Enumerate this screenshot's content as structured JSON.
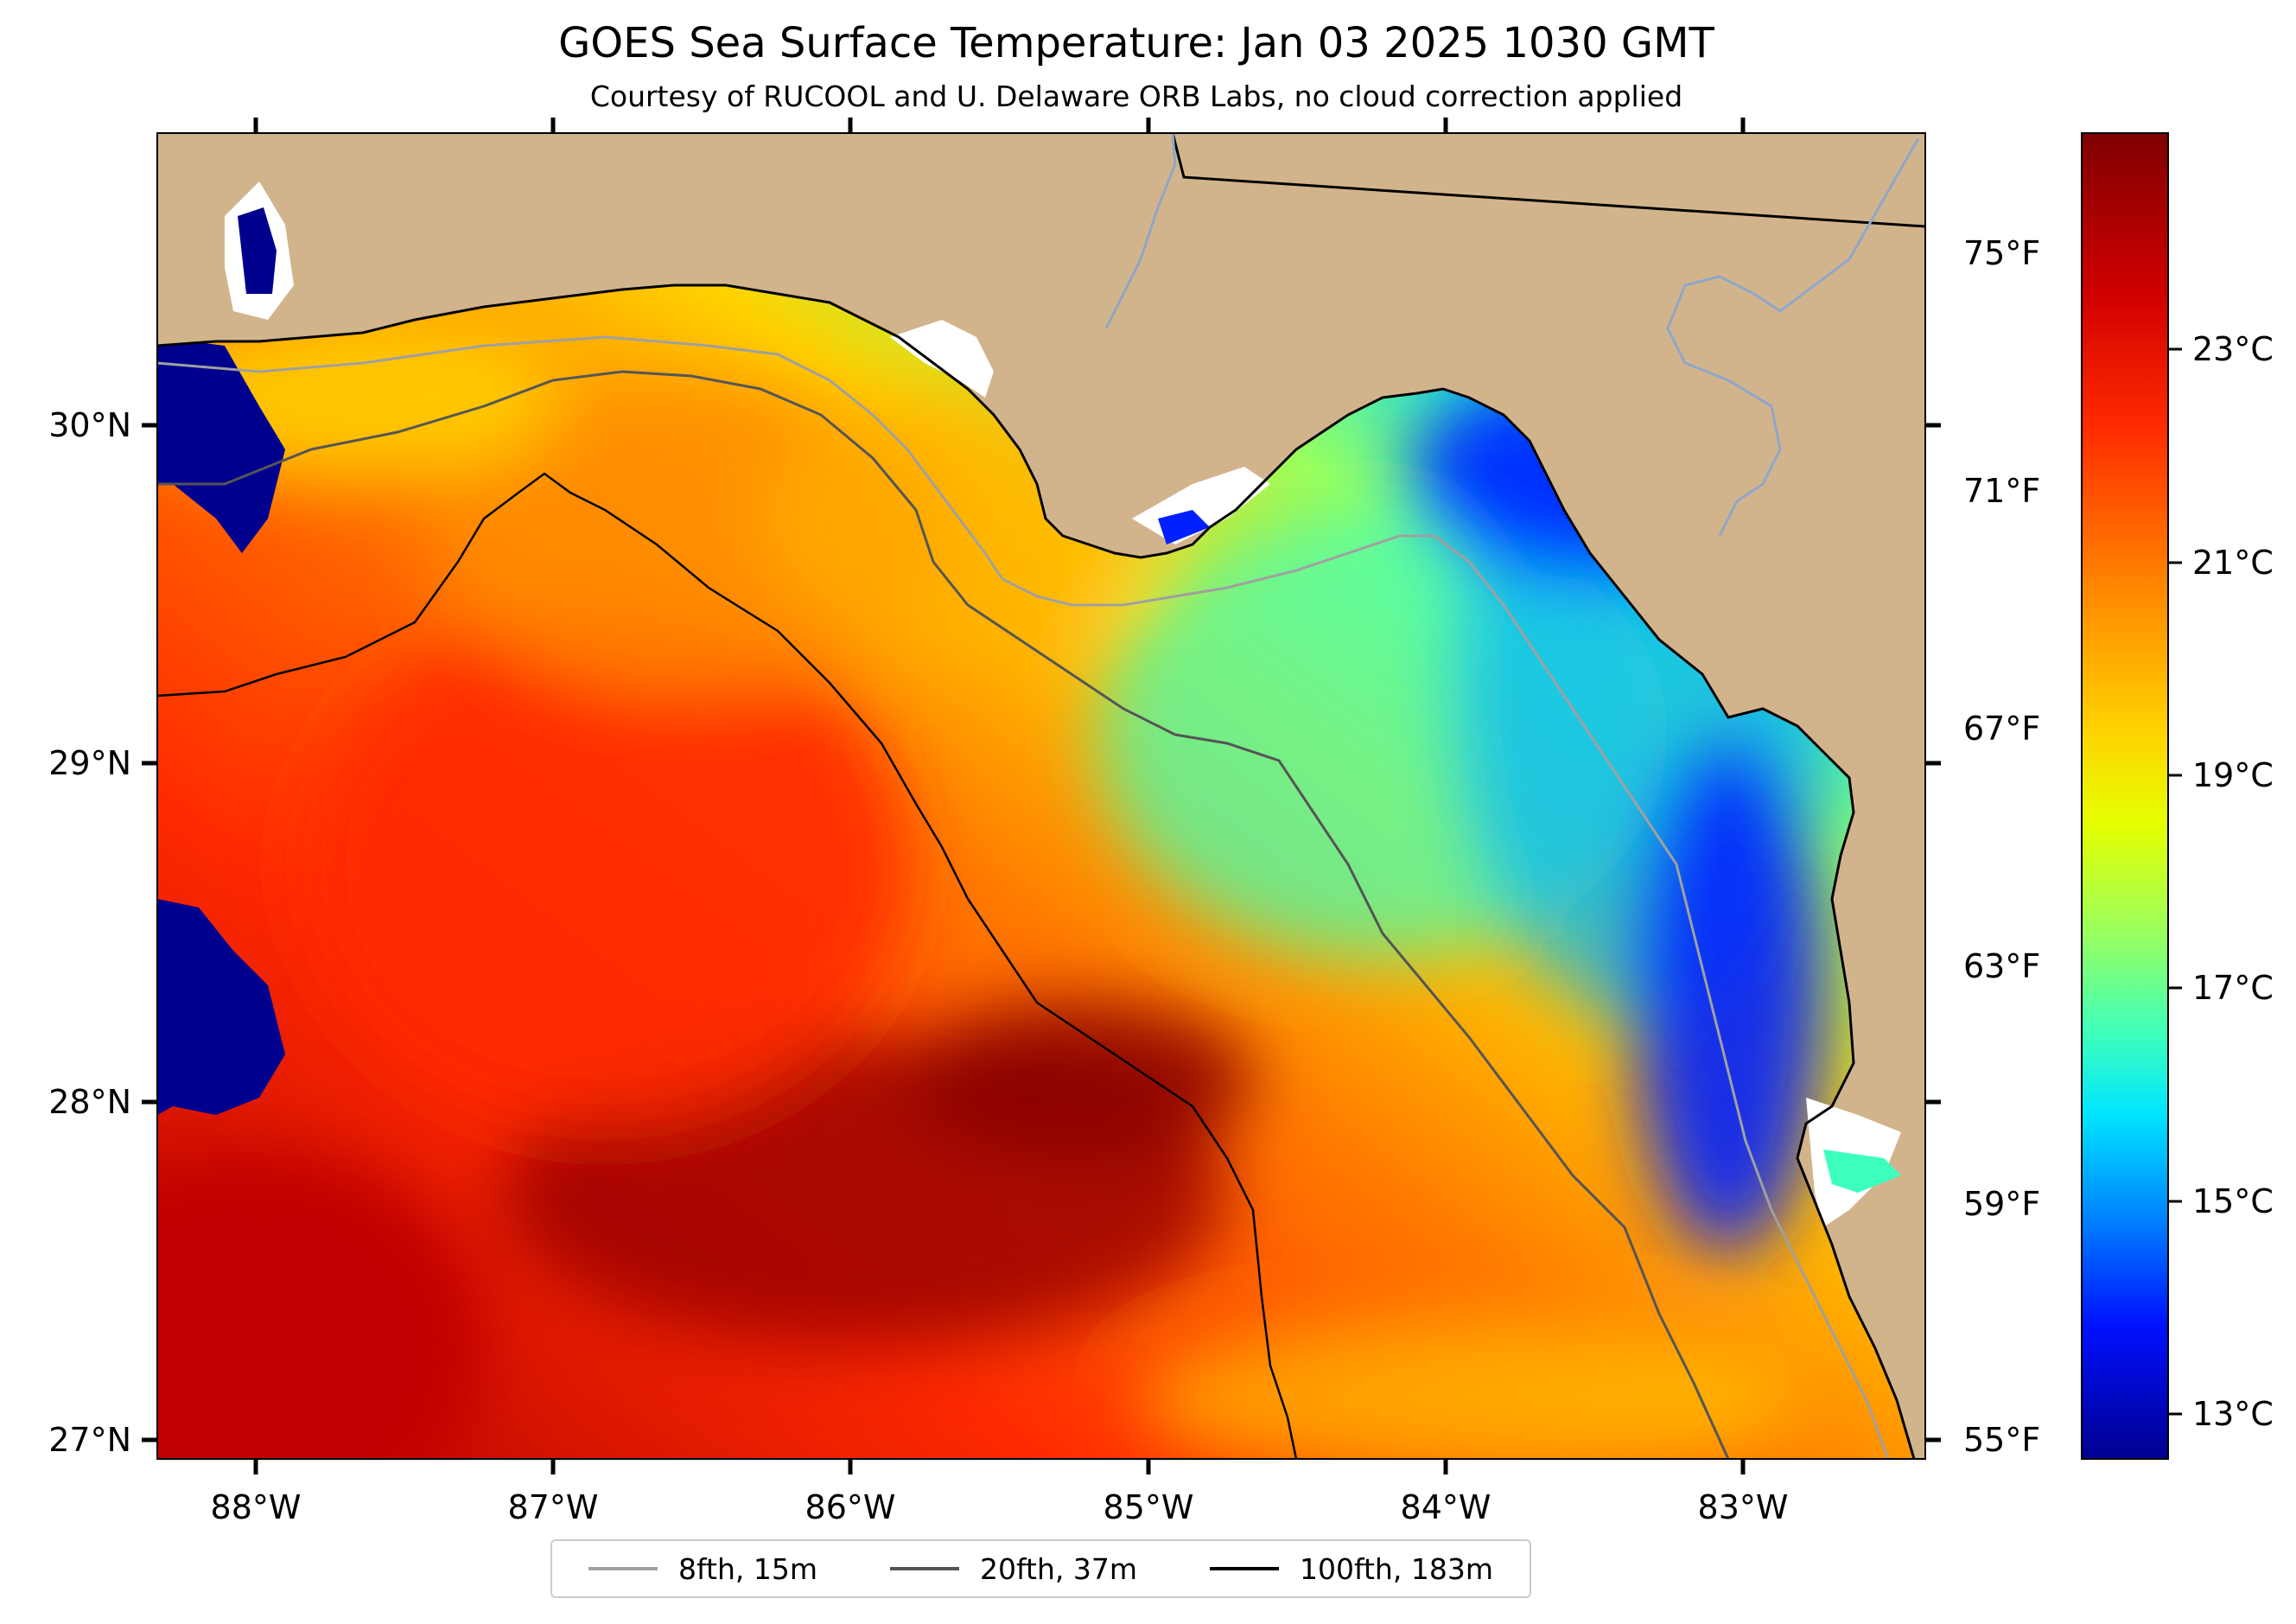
{
  "map": {
    "title": "GOES Sea Surface Temperature: Jan 03 2025 1030 GMT",
    "subtitle": "Courtesy of RUCOOL and U. Delaware ORB Labs, no cloud correction applied",
    "lon_labels": [
      "88°W",
      "87°W",
      "86°W",
      "85°W",
      "84°W",
      "83°W"
    ],
    "lat_labels": [
      "30°N",
      "29°N",
      "28°N",
      "27°N"
    ],
    "fahrenheit_labels": [
      "75°F",
      "71°F",
      "67°F",
      "63°F",
      "59°F",
      "55°F"
    ],
    "celsius_labels": [
      "23°C",
      "21°C",
      "19°C",
      "17°C",
      "15°C",
      "13°C"
    ],
    "colors": {
      "land": "#d2b48c",
      "colormap": [
        "#7f0000",
        "#d00000",
        "#ff2a00",
        "#ff8c00",
        "#ffd200",
        "#e6ff00",
        "#9dff5a",
        "#3dffbd",
        "#00e5ff",
        "#0080ff",
        "#0010ff",
        "#00008f"
      ]
    }
  },
  "legend": {
    "items": [
      {
        "label": "8fth, 15m",
        "color": "#a0a0a0"
      },
      {
        "label": "20fth, 37m",
        "color": "#555555"
      },
      {
        "label": "100fth, 183m",
        "color": "#000000"
      }
    ]
  }
}
